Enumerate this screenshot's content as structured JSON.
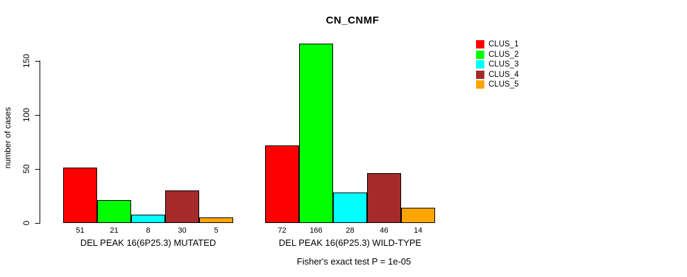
{
  "page": {
    "background": "#FFFFFF",
    "text_color": "#000000"
  },
  "chart_data": {
    "type": "bar",
    "title": "CN_CNMF",
    "ylabel": "number of cases",
    "xlabel": "",
    "ylim": [
      0,
      150
    ],
    "yticks": [
      0,
      50,
      100,
      150
    ],
    "grid": false,
    "legend_position": "top-right",
    "bar_border_color": "#000000",
    "categories": [
      "DEL PEAK 16(6P25.3) MUTATED",
      "DEL PEAK 16(6P25.3) WILD-TYPE"
    ],
    "series": [
      {
        "name": "CLUS_1",
        "color": "#FF0000",
        "values": [
          51,
          72
        ]
      },
      {
        "name": "CLUS_2",
        "color": "#00FF00",
        "values": [
          21,
          166
        ]
      },
      {
        "name": "CLUS_3",
        "color": "#00FFFF",
        "values": [
          8,
          28
        ]
      },
      {
        "name": "CLUS_4",
        "color": "#A52A2A",
        "values": [
          30,
          46
        ]
      },
      {
        "name": "CLUS_5",
        "color": "#FFA500",
        "values": [
          5,
          14
        ]
      }
    ],
    "bar_value_labels_shown": true,
    "annotation": "Fisher's exact test P = 1e-05"
  }
}
